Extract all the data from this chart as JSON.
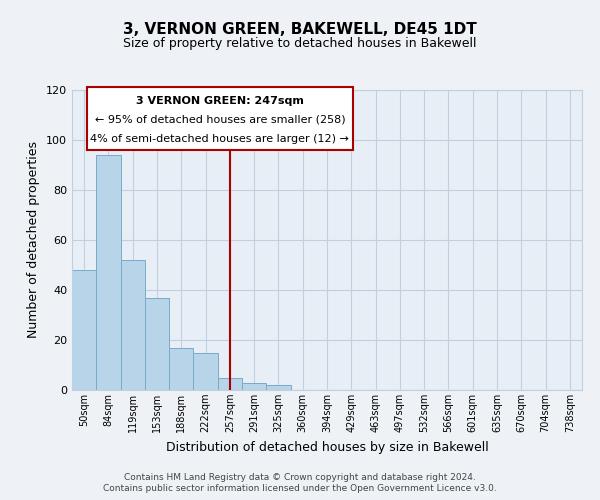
{
  "title": "3, VERNON GREEN, BAKEWELL, DE45 1DT",
  "subtitle": "Size of property relative to detached houses in Bakewell",
  "xlabel": "Distribution of detached houses by size in Bakewell",
  "ylabel": "Number of detached properties",
  "bar_labels": [
    "50sqm",
    "84sqm",
    "119sqm",
    "153sqm",
    "188sqm",
    "222sqm",
    "257sqm",
    "291sqm",
    "325sqm",
    "360sqm",
    "394sqm",
    "429sqm",
    "463sqm",
    "497sqm",
    "532sqm",
    "566sqm",
    "601sqm",
    "635sqm",
    "670sqm",
    "704sqm",
    "738sqm"
  ],
  "bar_heights": [
    48,
    94,
    52,
    37,
    17,
    15,
    5,
    3,
    2,
    0,
    0,
    0,
    0,
    0,
    0,
    0,
    0,
    0,
    0,
    0,
    0
  ],
  "bar_color": "#b8d4e8",
  "bar_edge_color": "#7aaac8",
  "property_line_x": 6,
  "property_line_color": "#aa0000",
  "ylim": [
    0,
    120
  ],
  "yticks": [
    0,
    20,
    40,
    60,
    80,
    100,
    120
  ],
  "annotation_title": "3 VERNON GREEN: 247sqm",
  "annotation_line1": "← 95% of detached houses are smaller (258)",
  "annotation_line2": "4% of semi-detached houses are larger (12) →",
  "footer_line1": "Contains HM Land Registry data © Crown copyright and database right 2024.",
  "footer_line2": "Contains public sector information licensed under the Open Government Licence v3.0.",
  "background_color": "#eef2f7",
  "plot_background_color": "#e8eef5",
  "grid_color": "#c0d0e0"
}
